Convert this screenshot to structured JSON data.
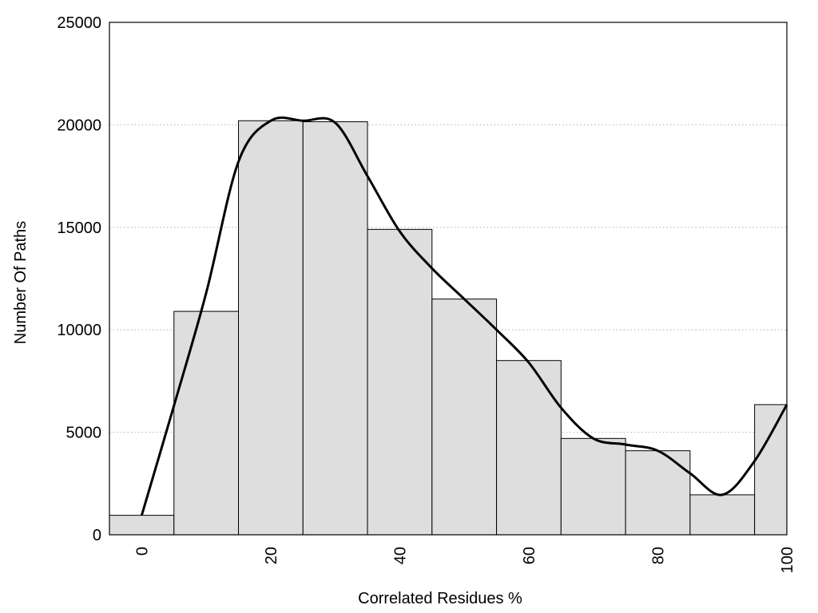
{
  "chart_data": {
    "type": "bar",
    "title": "",
    "xlabel": "Correlated Residues %",
    "ylabel": "Number Of Paths",
    "bar_width": 10,
    "x": [
      0,
      10,
      20,
      30,
      40,
      50,
      60,
      70,
      80,
      90,
      100
    ],
    "values": [
      950,
      10900,
      20200,
      20150,
      14900,
      11500,
      8500,
      4700,
      4100,
      1950,
      6350
    ],
    "xlim": [
      -5,
      100
    ],
    "ylim": [
      0,
      25000
    ],
    "xticks": [
      0,
      20,
      40,
      60,
      80,
      100
    ],
    "yticks": [
      0,
      5000,
      10000,
      15000,
      20000,
      25000
    ],
    "grid": "horizontal-dotted",
    "bar_color": "#dedede",
    "curve": {
      "type": "line",
      "color": "#000000",
      "points": [
        [
          0,
          950
        ],
        [
          5,
          6300
        ],
        [
          10,
          11800
        ],
        [
          15,
          18200
        ],
        [
          20,
          20200
        ],
        [
          25,
          20200
        ],
        [
          30,
          20100
        ],
        [
          35,
          17500
        ],
        [
          40,
          14800
        ],
        [
          45,
          13000
        ],
        [
          50,
          11500
        ],
        [
          55,
          10000
        ],
        [
          60,
          8400
        ],
        [
          65,
          6200
        ],
        [
          70,
          4700
        ],
        [
          75,
          4400
        ],
        [
          80,
          4100
        ],
        [
          85,
          3000
        ],
        [
          90,
          1950
        ],
        [
          95,
          3600
        ],
        [
          100,
          6350
        ]
      ]
    }
  }
}
